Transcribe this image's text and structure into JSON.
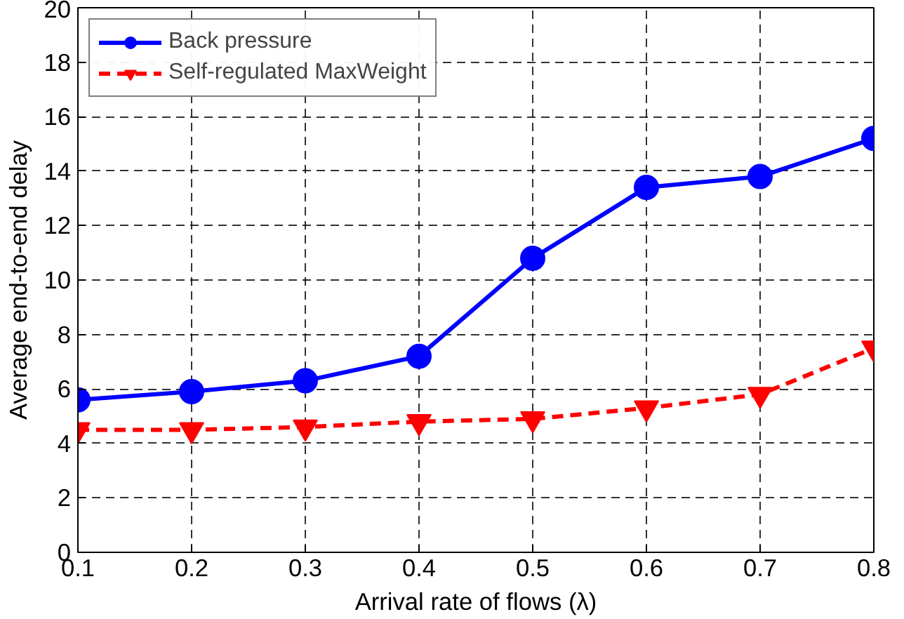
{
  "chart_data": {
    "type": "line",
    "xlabel": "Arrival rate of flows (λ)",
    "ylabel": "Average end-to-end delay",
    "x": [
      0.1,
      0.2,
      0.3,
      0.4,
      0.5,
      0.6,
      0.7,
      0.8
    ],
    "xlim": [
      0.1,
      0.8
    ],
    "xticks": [
      0.1,
      0.2,
      0.3,
      0.4,
      0.5,
      0.6,
      0.7,
      0.8
    ],
    "ylim": [
      0,
      20
    ],
    "yticks": [
      0,
      2,
      4,
      6,
      8,
      10,
      12,
      14,
      16,
      18,
      20
    ],
    "grid": true,
    "legend": "top left",
    "series": [
      {
        "name": "Back pressure",
        "color": "#0000ff",
        "marker": "circle",
        "line_style": "solid",
        "values": [
          5.6,
          5.9,
          6.3,
          7.2,
          10.8,
          13.4,
          13.8,
          15.2
        ]
      },
      {
        "name": "Self-regulated MaxWeight",
        "color": "#ff0000",
        "marker": "triangle",
        "line_style": "dashed",
        "values": [
          4.5,
          4.5,
          4.6,
          4.8,
          4.9,
          5.3,
          5.8,
          7.5
        ]
      }
    ]
  }
}
